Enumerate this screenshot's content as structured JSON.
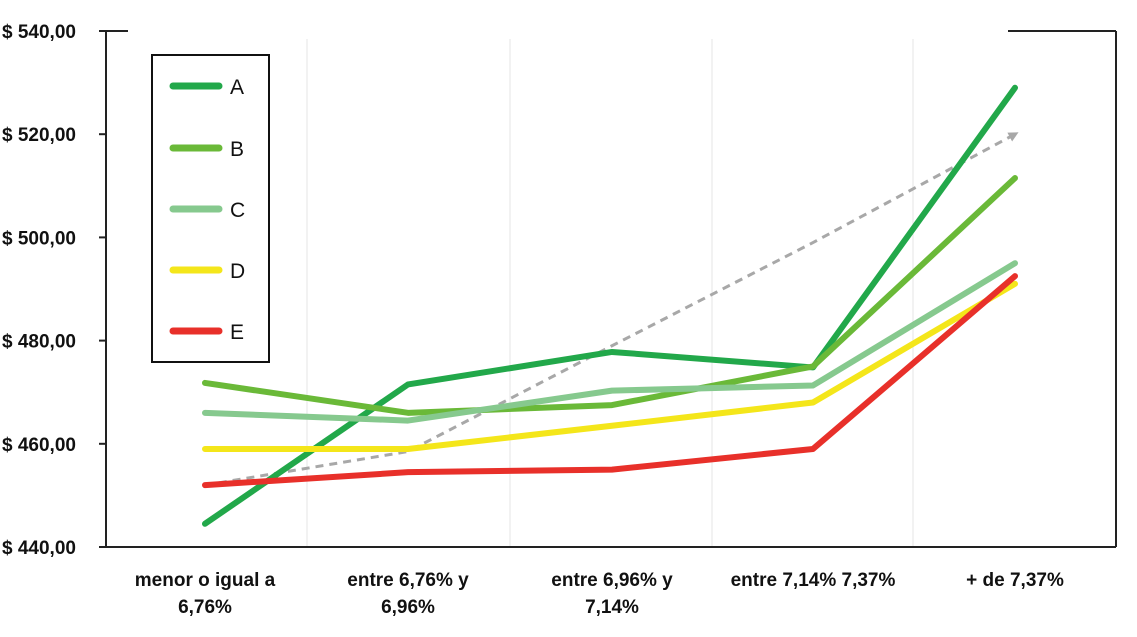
{
  "chart_data": {
    "type": "line",
    "title": "",
    "xlabel": "",
    "ylabel": "",
    "categories": [
      [
        "menor o igual a",
        "6,76%"
      ],
      [
        "entre 6,76% y",
        "6,96%"
      ],
      [
        "entre 6,96% y",
        "7,14%"
      ],
      [
        "entre 7,14% 7,37%"
      ],
      [
        "+ de 7,37%"
      ]
    ],
    "ylim": [
      440,
      540
    ],
    "yticks": [
      {
        "value": 440,
        "label": "$ 440,00"
      },
      {
        "value": 460,
        "label": "$ 460,00"
      },
      {
        "value": 480,
        "label": "$ 480,00"
      },
      {
        "value": 500,
        "label": "$ 500,00"
      },
      {
        "value": 520,
        "label": "$ 520,00"
      },
      {
        "value": 540,
        "label": "$ 540,00"
      }
    ],
    "grid": "vertical",
    "legend_position": "top-left",
    "series": [
      {
        "name": "A",
        "color": "#22a84a",
        "values": [
          444.5,
          471.5,
          477.8,
          474.8,
          529
        ]
      },
      {
        "name": "B",
        "color": "#6ab938",
        "values": [
          471.8,
          466,
          467.5,
          475,
          511.5
        ]
      },
      {
        "name": "C",
        "color": "#86c98e",
        "values": [
          466,
          464.5,
          470.3,
          471.3,
          495
        ]
      },
      {
        "name": "D",
        "color": "#f4e61a",
        "values": [
          459,
          459,
          463.5,
          468,
          491
        ]
      },
      {
        "name": "E",
        "color": "#e8302a",
        "values": [
          452,
          454.5,
          455,
          459,
          492.5
        ]
      }
    ],
    "trend": {
      "color": "#a8a8a8",
      "style": "dashed-arrow",
      "values": [
        452,
        458.5,
        479,
        499,
        520
      ]
    }
  }
}
